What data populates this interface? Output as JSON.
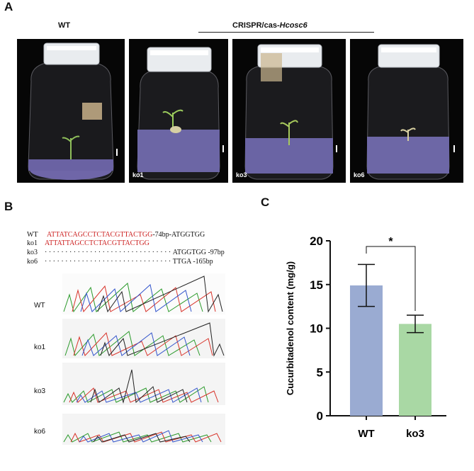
{
  "panels": {
    "a": "A",
    "b": "B",
    "c": "C"
  },
  "panel_a": {
    "wt_label": "WT",
    "group_label": "CRISPR/cas-",
    "group_gene": "Hcosc6",
    "photos": [
      {
        "label": ""
      },
      {
        "label": "ko1"
      },
      {
        "label": "ko3"
      },
      {
        "label": "ko6"
      }
    ]
  },
  "panel_b": {
    "sequences": [
      {
        "name": "WT",
        "red": "ATTATCAGCCTCTACGTTACTGG",
        "black": "-74bp-ATGGTGG",
        "blue": ""
      },
      {
        "name": "ko1",
        "red": "ATTATT",
        "blue": "",
        "red2": "AGCCTCTACGTTACTGG"
      },
      {
        "name": "ko3",
        "dots": "· · · · · · · · · · · · · · · · · · · · · · · · · · · · · · ·",
        "tail": "ATGGTGG  -97bp"
      },
      {
        "name": "ko6",
        "dots": "· · · · · · · · · · · · · · · · · · · · · · · · · · · · · · ·",
        "tail": "TTGA  -165bp"
      }
    ],
    "traces": [
      "WT",
      "ko1",
      "ko3",
      "ko6"
    ]
  },
  "chart_data": {
    "type": "bar",
    "categories": [
      "WT",
      "ko3"
    ],
    "values": [
      14.9,
      10.5
    ],
    "errors": [
      2.4,
      1.0
    ],
    "ylabel": "Cucurbitadenol content (mg/g)",
    "ylim": [
      0,
      20
    ],
    "yticks": [
      0,
      5,
      10,
      15,
      20
    ],
    "colors": [
      "#9aabd2",
      "#a9d8a4"
    ],
    "significance": "*"
  }
}
